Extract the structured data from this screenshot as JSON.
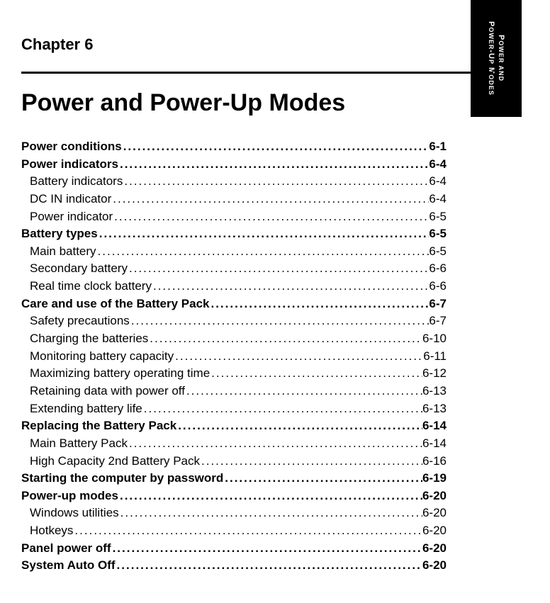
{
  "sideTab": {
    "line1_big": "P",
    "line1_small": "OWER AND",
    "line2_big1": "P",
    "line2_small1": "OWER",
    "line2_mid": "-U",
    "line2_small2": "P",
    "line2_big2": " M",
    "line2_small3": "ODES"
  },
  "chapterLabel": "Chapter  6",
  "chapterTitle": "Power and Power-Up Modes",
  "toc": [
    {
      "label": "Power conditions",
      "page": "6-1",
      "level": 0
    },
    {
      "label": "Power indicators",
      "page": "6-4",
      "level": 0
    },
    {
      "label": "Battery indicators",
      "page": "6-4",
      "level": 1
    },
    {
      "label": "DC IN indicator",
      "page": "6-4",
      "level": 1
    },
    {
      "label": "Power indicator",
      "page": "6-5",
      "level": 1
    },
    {
      "label": "Battery types",
      "page": "6-5",
      "level": 0
    },
    {
      "label": "Main battery",
      "page": "6-5",
      "level": 1
    },
    {
      "label": "Secondary battery",
      "page": "6-6",
      "level": 1
    },
    {
      "label": "Real time clock battery",
      "page": "6-6",
      "level": 1
    },
    {
      "label": "Care and use of the Battery Pack",
      "page": "6-7",
      "level": 0
    },
    {
      "label": "Safety precautions",
      "page": "6-7",
      "level": 1
    },
    {
      "label": "Charging the batteries",
      "page": "6-10",
      "level": 1
    },
    {
      "label": "Monitoring battery capacity",
      "page": "6-11",
      "level": 1
    },
    {
      "label": "Maximizing battery operating time",
      "page": "6-12",
      "level": 1
    },
    {
      "label": "Retaining data with power off",
      "page": "6-13",
      "level": 1
    },
    {
      "label": "Extending battery life",
      "page": "6-13",
      "level": 1
    },
    {
      "label": "Replacing the Battery Pack",
      "page": "6-14",
      "level": 0
    },
    {
      "label": "Main Battery Pack",
      "page": "6-14",
      "level": 1
    },
    {
      "label": "High Capacity 2nd Battery Pack",
      "page": "6-16",
      "level": 1
    },
    {
      "label": "Starting the computer by password",
      "page": "6-19",
      "level": 0
    },
    {
      "label": "Power-up modes",
      "page": "6-20",
      "level": 0
    },
    {
      "label": "Windows utilities",
      "page": "6-20",
      "level": 1
    },
    {
      "label": "Hotkeys",
      "page": "6-20",
      "level": 1
    },
    {
      "label": "Panel power off",
      "page": "6-20",
      "level": 0
    },
    {
      "label": "System Auto Off",
      "page": "6-20",
      "level": 0
    }
  ]
}
